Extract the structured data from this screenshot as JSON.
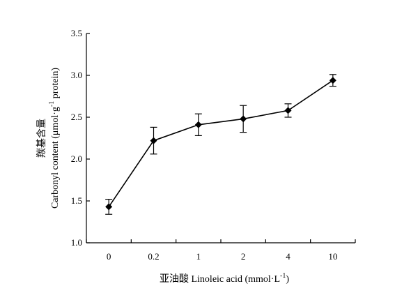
{
  "chart_data": {
    "type": "line",
    "categories": [
      "0",
      "0.2",
      "1",
      "2",
      "4",
      "10"
    ],
    "series": [
      {
        "values": [
          1.43,
          2.22,
          2.41,
          2.48,
          2.58,
          2.94
        ],
        "errors": [
          0.09,
          0.16,
          0.13,
          0.16,
          0.08,
          0.07
        ],
        "color": "#000000",
        "marker": "diamond"
      }
    ],
    "xlabel": {
      "main": "亚油酸 Linoleic acid (mmol·L",
      "sup": "-1",
      "end": ")"
    },
    "ylabel": {
      "line1": "羰基含量",
      "line2_main": "Carbonyl content (μmol·g",
      "line2_sup": "-1",
      "line2_end": " protein)"
    },
    "ylim": [
      1.0,
      3.5
    ],
    "yticks": [
      "1.0",
      "1.5",
      "2.0",
      "2.5",
      "3.0",
      "3.5"
    ],
    "grid": false
  }
}
